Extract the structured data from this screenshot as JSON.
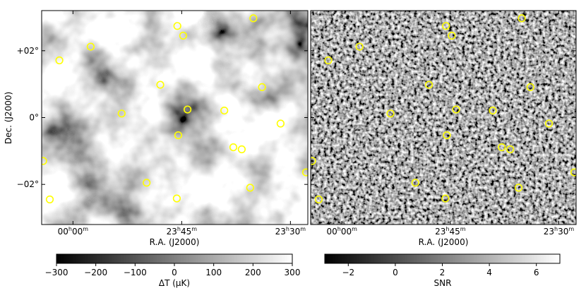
{
  "chart_data": [
    {
      "type": "heatmap",
      "name": "temperature-map",
      "xlabel": "R.A. (J2000)",
      "ylabel": "Dec. (J2000)",
      "x_ticks": [
        {
          "ra_deg": 0.0,
          "label_main": "00",
          "label_unit": "h",
          "label_sub": "00",
          "label_subunit": "m"
        },
        {
          "ra_deg": 356.25,
          "label_main": "23",
          "label_unit": "h",
          "label_sub": "45",
          "label_subunit": "m"
        },
        {
          "ra_deg": 352.5,
          "label_main": "23",
          "label_unit": "h",
          "label_sub": "30",
          "label_subunit": "m"
        }
      ],
      "y_ticks": [
        {
          "dec_deg": 2,
          "label": "+02°"
        },
        {
          "dec_deg": 0,
          "label": "0°"
        },
        {
          "dec_deg": -2,
          "label": "−02°"
        }
      ],
      "ra_range_deg": [
        1.08,
        351.9
      ],
      "dec_range_deg": [
        -3.2,
        3.2
      ],
      "colorbar": {
        "label": "ΔT (μK)",
        "range": [
          -300,
          300
        ],
        "ticks": [
          -300,
          -200,
          -100,
          0,
          100,
          200,
          300
        ],
        "tick_labels": [
          "−300",
          "−200",
          "−100",
          "0",
          "100",
          "200",
          "300"
        ],
        "colormap": "gray"
      },
      "color": "#ffff00"
    },
    {
      "type": "heatmap",
      "name": "snr-map",
      "xlabel": "R.A. (J2000)",
      "x_ticks": [
        {
          "ra_deg": 0.0,
          "label_main": "00",
          "label_unit": "h",
          "label_sub": "00",
          "label_subunit": "m"
        },
        {
          "ra_deg": 356.25,
          "label_main": "23",
          "label_unit": "h",
          "label_sub": "45",
          "label_subunit": "m"
        },
        {
          "ra_deg": 352.5,
          "label_main": "23",
          "label_unit": "h",
          "label_sub": "30",
          "label_subunit": "m"
        }
      ],
      "ra_range_deg": [
        1.08,
        351.9
      ],
      "dec_range_deg": [
        -3.2,
        3.2
      ],
      "colorbar": {
        "label": "SNR",
        "range": [
          -3,
          7
        ],
        "ticks": [
          -2,
          0,
          2,
          4,
          6
        ],
        "tick_labels": [
          "−2",
          "0",
          "2",
          "4",
          "6"
        ],
        "colormap": "gray"
      },
      "color": "#ffff00"
    }
  ],
  "sources": [
    {
      "ra_deg": 356.4,
      "dec_deg": 2.74
    },
    {
      "ra_deg": 356.2,
      "dec_deg": 2.45
    },
    {
      "ra_deg": 353.78,
      "dec_deg": 2.97
    },
    {
      "ra_deg": 359.39,
      "dec_deg": 2.12
    },
    {
      "ra_deg": 0.47,
      "dec_deg": 1.71
    },
    {
      "ra_deg": 356.99,
      "dec_deg": 0.98
    },
    {
      "ra_deg": 353.48,
      "dec_deg": 0.91
    },
    {
      "ra_deg": 358.32,
      "dec_deg": 0.12
    },
    {
      "ra_deg": 356.05,
      "dec_deg": 0.24
    },
    {
      "ra_deg": 354.78,
      "dec_deg": 0.21
    },
    {
      "ra_deg": 352.84,
      "dec_deg": -0.18
    },
    {
      "ra_deg": 356.37,
      "dec_deg": -0.53
    },
    {
      "ra_deg": 354.47,
      "dec_deg": -0.89
    },
    {
      "ra_deg": 354.18,
      "dec_deg": -0.95
    },
    {
      "ra_deg": 1.03,
      "dec_deg": -1.3
    },
    {
      "ra_deg": 357.46,
      "dec_deg": -1.95
    },
    {
      "ra_deg": 353.89,
      "dec_deg": -2.1
    },
    {
      "ra_deg": 351.96,
      "dec_deg": -1.64
    },
    {
      "ra_deg": 1.38,
      "dec_deg": -2.0
    },
    {
      "ra_deg": 0.8,
      "dec_deg": -2.45
    },
    {
      "ra_deg": 356.42,
      "dec_deg": -2.42
    }
  ]
}
